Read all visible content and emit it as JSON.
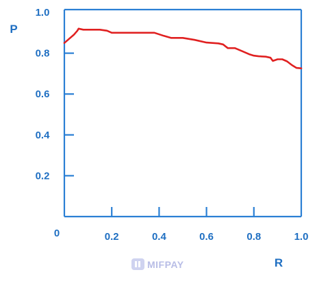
{
  "chart_data": {
    "type": "line",
    "xlabel": "R",
    "ylabel": "P",
    "xlim": [
      0,
      1.0
    ],
    "ylim": [
      0,
      1.0
    ],
    "x_ticks": [
      0,
      0.2,
      0.4,
      0.6,
      0.8,
      1.0
    ],
    "x_tick_labels": [
      "0",
      "0.2",
      "0.4",
      "0.6",
      "0.8",
      "1.0"
    ],
    "y_ticks": [
      0.2,
      0.4,
      0.6,
      0.8,
      1.0
    ],
    "y_tick_labels": [
      "0.2",
      "0.4",
      "0.6",
      "0.8",
      "1.0"
    ],
    "grid": false,
    "series": [
      {
        "color": "#e02020",
        "x": [
          0.0,
          0.02,
          0.04,
          0.055,
          0.06,
          0.08,
          0.1,
          0.13,
          0.15,
          0.18,
          0.2,
          0.25,
          0.3,
          0.35,
          0.38,
          0.42,
          0.45,
          0.5,
          0.55,
          0.6,
          0.65,
          0.67,
          0.69,
          0.72,
          0.75,
          0.78,
          0.8,
          0.82,
          0.85,
          0.87,
          0.88,
          0.9,
          0.92,
          0.94,
          0.96,
          0.98,
          1.0
        ],
        "y": [
          0.85,
          0.87,
          0.89,
          0.91,
          0.92,
          0.915,
          0.915,
          0.915,
          0.915,
          0.91,
          0.9,
          0.9,
          0.9,
          0.9,
          0.9,
          0.885,
          0.875,
          0.875,
          0.865,
          0.852,
          0.848,
          0.843,
          0.825,
          0.825,
          0.81,
          0.795,
          0.788,
          0.785,
          0.783,
          0.778,
          0.762,
          0.77,
          0.77,
          0.76,
          0.742,
          0.728,
          0.726
        ]
      }
    ]
  },
  "colors": {
    "axis": "#2a7fd4",
    "label": "#1f6fc2",
    "watermark": "#b8bde6"
  },
  "watermark": {
    "text": "MIFPAY",
    "icon": "wallet-icon"
  }
}
